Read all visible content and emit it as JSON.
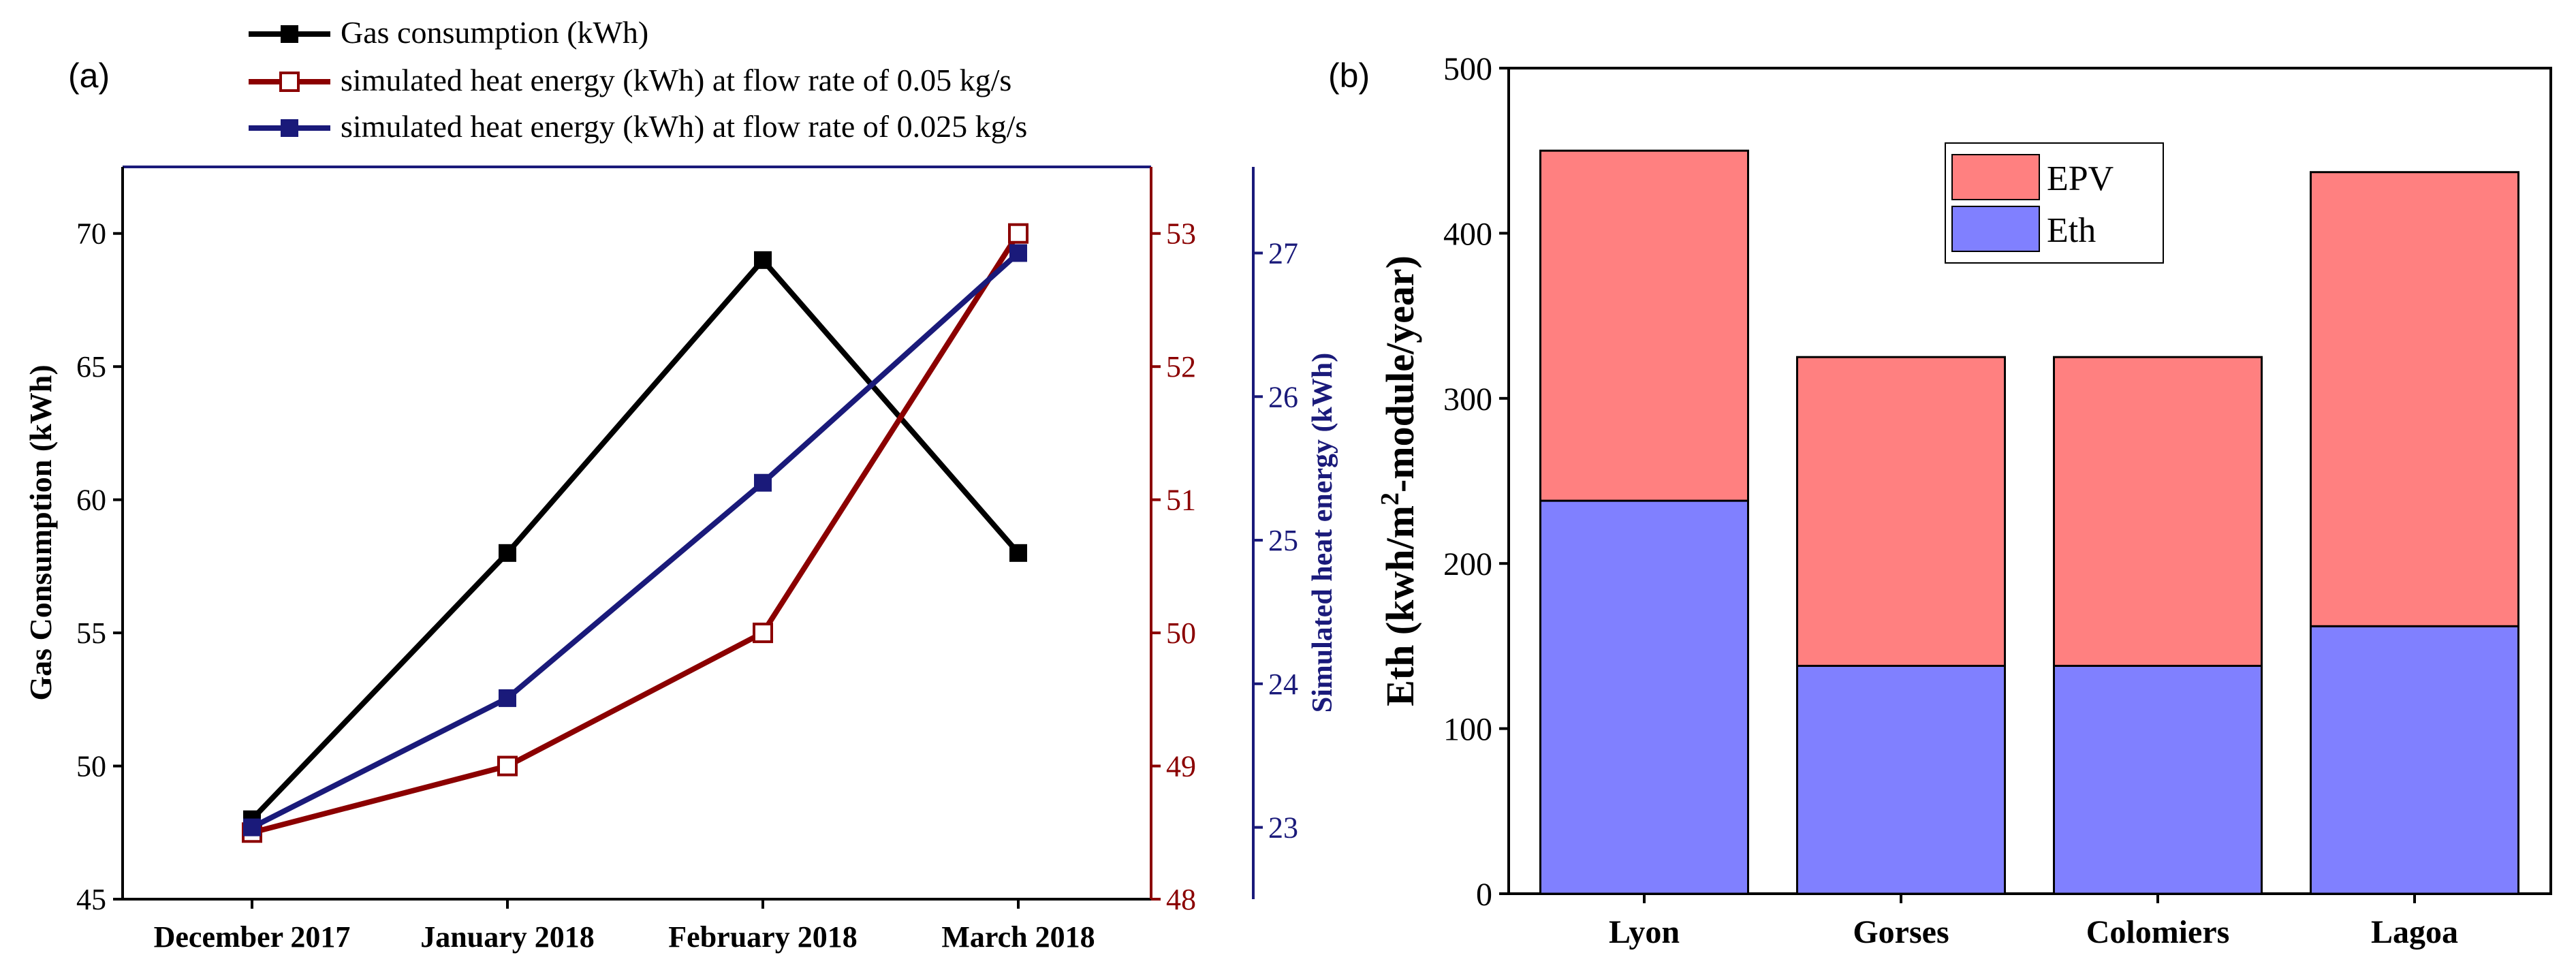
{
  "panel_a": {
    "label": "(a)",
    "categories": [
      "December 2017",
      "January 2018",
      "February 2018",
      "March 2018"
    ],
    "left_axis": {
      "label": "Gas Consumption (kWh)",
      "ylim": [
        45,
        72.5
      ],
      "ticks": [
        45,
        50,
        55,
        60,
        65,
        70
      ],
      "color": "#000000"
    },
    "right_axis_1": {
      "label": "",
      "ylim": [
        48,
        53.5
      ],
      "ticks": [
        48,
        49,
        50,
        51,
        52,
        53
      ],
      "color": "#8b0000"
    },
    "right_axis_2": {
      "label": "Simulated heat energy (kWh)",
      "ylim": [
        22.5,
        27.6
      ],
      "ticks": [
        23,
        24,
        25,
        26,
        27
      ],
      "color": "#1a1a7a"
    },
    "legend": [
      "Gas consumption (kWh)",
      "simulated heat energy (kWh) at flow rate of 0.05 kg/s",
      "simulated heat energy (kWh) at flow rate of 0.025 kg/s"
    ]
  },
  "panel_b": {
    "label": "(b)"
  },
  "chart_data": [
    {
      "type": "line",
      "title": "",
      "x": [
        "December 2017",
        "January 2018",
        "February 2018",
        "March 2018"
      ],
      "xlabel": "",
      "series": [
        {
          "name": "Gas consumption (kWh)",
          "axis": "left",
          "color": "#000000",
          "marker": "filled-square",
          "values": [
            48,
            58,
            69,
            58
          ]
        },
        {
          "name": "simulated heat energy (kWh) at flow rate of 0.05 kg/s",
          "axis": "right-1",
          "color": "#8b0000",
          "marker": "open-square",
          "values": [
            48.5,
            49,
            50,
            53
          ]
        },
        {
          "name": "simulated heat energy (kWh) at flow rate of 0.025 kg/s",
          "axis": "right-2",
          "color": "#1a1a7a",
          "marker": "filled-square",
          "values": [
            23,
            23.9,
            25.4,
            27
          ]
        }
      ],
      "ylabel": "Gas Consumption (kWh)",
      "ylabel_right": "Simulated heat energy (kWh)",
      "ylim": [
        45,
        72.5
      ],
      "ylim_right_1": [
        48,
        53.5
      ],
      "ylim_right_2": [
        22.5,
        27.6
      ],
      "grid": false,
      "legend_position": "top-outside"
    },
    {
      "type": "bar",
      "stacked": true,
      "title": "",
      "categories": [
        "Lyon",
        "Gorses",
        "Colomiers",
        "Lagoa"
      ],
      "series": [
        {
          "name": "Eth",
          "color": "#8080ff",
          "values": [
            238,
            138,
            138,
            162
          ]
        },
        {
          "name": "EPV",
          "color": "#ff8080",
          "values": [
            212,
            187,
            187,
            275
          ]
        }
      ],
      "ylabel": "Eth (kwh/m²-module/year)",
      "ylabel_parts": [
        "Eth (kwh/m",
        "2",
        "-module/year)"
      ],
      "xlabel": "",
      "ylim": [
        0,
        500
      ],
      "yticks": [
        0,
        100,
        200,
        300,
        400,
        500
      ],
      "grid": false,
      "legend_position": "top-center",
      "legend_order": [
        "EPV",
        "Eth"
      ]
    }
  ]
}
